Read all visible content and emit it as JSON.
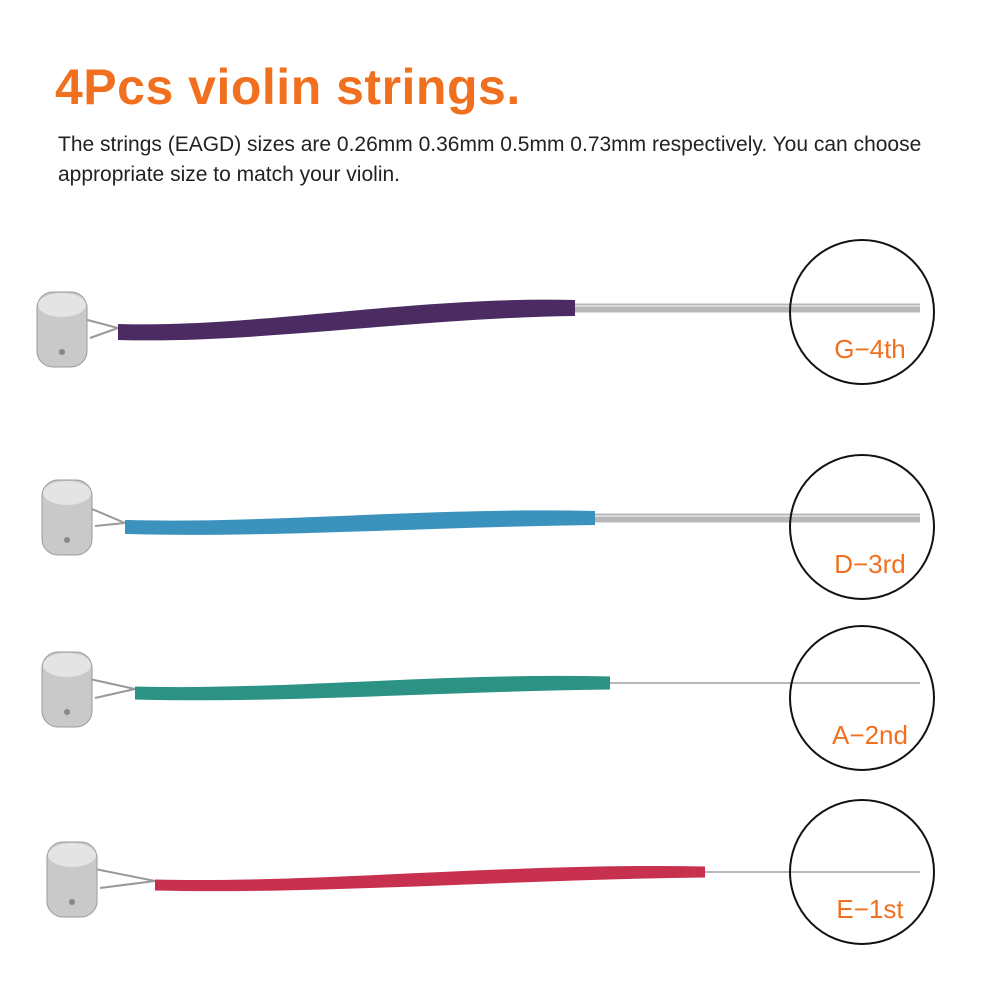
{
  "title": "4Pcs violin strings.",
  "description": "The strings (EAGD) sizes are 0.26mm 0.36mm 0.5mm 0.73mm respectively. You can choose appropriate size to match your violin.",
  "accent_color": "#f07020",
  "strings": [
    {
      "label": "G−4th",
      "wrap_color": "#4b2b62",
      "wire": "wound"
    },
    {
      "label": "D−3rd",
      "wrap_color": "#3a92bd",
      "wire": "wound"
    },
    {
      "label": "A−2nd",
      "wrap_color": "#2b9284",
      "wire": "plain"
    },
    {
      "label": "E−1st",
      "wrap_color": "#c8304f",
      "wire": "plain"
    }
  ]
}
